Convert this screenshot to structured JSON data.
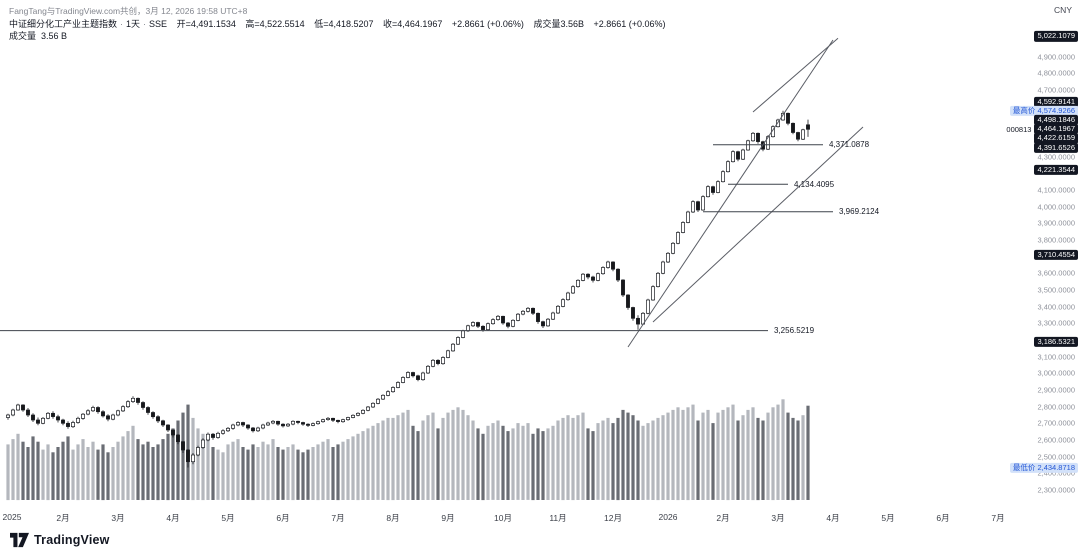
{
  "header": {
    "attribution": "FangTang与TradingView.com共创，3月 12, 2026 19:58 UTC+8",
    "legend": {
      "title": "中证细分化工产业主题指数",
      "separator": "·",
      "interval": "1天",
      "exchange": "SSE",
      "open": "开=4,491.1534",
      "high": "高=4,522.5514",
      "low": "低=4,418.5207",
      "close": "收=4,464.1967",
      "change": "+2.8661 (+0.06%)",
      "volume": "成交量3.56B",
      "change_after_volume": "+2.8661 (+0.06%)"
    },
    "volume_row": {
      "label": "成交量",
      "value": "3.56 B"
    }
  },
  "price_axis": {
    "currency": "CNY",
    "ticks": [
      {
        "label": "4,900.0000",
        "value": 4900
      },
      {
        "label": "4,800.0000",
        "value": 4800
      },
      {
        "label": "4,700.0000",
        "value": 4700
      },
      {
        "label": "4,300.0000",
        "value": 4300
      },
      {
        "label": "4,100.0000",
        "value": 4100
      },
      {
        "label": "4,000.0000",
        "value": 4000
      },
      {
        "label": "3,900.0000",
        "value": 3900
      },
      {
        "label": "3,800.0000",
        "value": 3800
      },
      {
        "label": "3,600.0000",
        "value": 3600
      },
      {
        "label": "3,500.0000",
        "value": 3500
      },
      {
        "label": "3,400.0000",
        "value": 3400
      },
      {
        "label": "3,300.0000",
        "value": 3300
      },
      {
        "label": "3,100.0000",
        "value": 3100
      },
      {
        "label": "3,000.0000",
        "value": 3000
      },
      {
        "label": "2,900.0000",
        "value": 2900
      },
      {
        "label": "2,800.0000",
        "value": 2800
      },
      {
        "label": "2,700.0000",
        "value": 2700
      },
      {
        "label": "2,600.0000",
        "value": 2600
      },
      {
        "label": "2,500.0000",
        "value": 2500
      },
      {
        "label": "2,400.0000",
        "value": 2400
      },
      {
        "label": "2,300.0000",
        "value": 2300
      }
    ],
    "badges": [
      {
        "label": "5,022.1079",
        "price": 5022.1079,
        "type": "dark"
      },
      {
        "label": "4,592.9141",
        "price": 4592.9141,
        "type": "dark"
      },
      {
        "prefix": "最高价",
        "label": "4,574.9266",
        "price": 4574.9266,
        "type": "blue"
      },
      {
        "label": "4,498.1846",
        "price": 4498.1846,
        "type": "dark"
      },
      {
        "prefix": "000813",
        "label": "4,464.1967",
        "price": 4464.1967,
        "type": "dark"
      },
      {
        "label": "4,422.6159",
        "price": 4422.6159,
        "type": "dark"
      },
      {
        "label": "4,391.6526",
        "price": 4391.6526,
        "type": "dark"
      },
      {
        "label": "4,221.3544",
        "price": 4221.3544,
        "type": "dark"
      },
      {
        "label": "3,710.4554",
        "price": 3710.4554,
        "type": "dark"
      },
      {
        "label": "3,186.5321",
        "price": 3186.5321,
        "type": "dark"
      },
      {
        "prefix": "最低价",
        "label": "2,434.8718",
        "price": 2434.8718,
        "type": "blue"
      }
    ]
  },
  "time_axis": {
    "labels": [
      {
        "text": "2025",
        "i": 0
      },
      {
        "text": "2月",
        "i": 11
      },
      {
        "text": "3月",
        "i": 22
      },
      {
        "text": "4月",
        "i": 33
      },
      {
        "text": "5月",
        "i": 44
      },
      {
        "text": "6月",
        "i": 55
      },
      {
        "text": "7月",
        "i": 66
      },
      {
        "text": "8月",
        "i": 77
      },
      {
        "text": "9月",
        "i": 88
      },
      {
        "text": "10月",
        "i": 99
      },
      {
        "text": "11月",
        "i": 110
      },
      {
        "text": "12月",
        "i": 121
      },
      {
        "text": "2026",
        "i": 132
      },
      {
        "text": "2月",
        "i": 143
      },
      {
        "text": "3月",
        "i": 154
      },
      {
        "text": "4月",
        "i": 165
      },
      {
        "text": "5月",
        "i": 176
      },
      {
        "text": "6月",
        "i": 187
      },
      {
        "text": "7月",
        "i": 198
      }
    ]
  },
  "chart_data": {
    "type": "candlestick",
    "symbol": "中证细分化工产业主题指数",
    "symbol_code": "000813",
    "interval": "1天",
    "exchange": "SSE",
    "currency": "CNY",
    "title": "中证细分化工产业主题指数 · 1天 · SSE",
    "ohlc_fields": [
      "open",
      "high",
      "low",
      "close",
      "volume_B"
    ],
    "price_range": {
      "min": 2240,
      "max": 5060
    },
    "volume_max_B": 4.0,
    "stats": {
      "open": 4491.1534,
      "high": 4522.5514,
      "low": 4418.5207,
      "last_close": 4464.1967,
      "change": "+2.8661",
      "change_pct": "+0.06%",
      "volume": "3.56 B",
      "highest": 4574.9266,
      "lowest": 2434.8718
    },
    "candles": [
      [
        2735,
        2758,
        2722,
        2750,
        2.1
      ],
      [
        2750,
        2788,
        2742,
        2780,
        2.3
      ],
      [
        2780,
        2818,
        2775,
        2810,
        2.5
      ],
      [
        2810,
        2815,
        2770,
        2780,
        2.2
      ],
      [
        2780,
        2792,
        2738,
        2750,
        2.0
      ],
      [
        2750,
        2760,
        2708,
        2720,
        2.4
      ],
      [
        2720,
        2735,
        2688,
        2700,
        2.2
      ],
      [
        2700,
        2738,
        2695,
        2730,
        1.9
      ],
      [
        2730,
        2768,
        2725,
        2760,
        2.1
      ],
      [
        2760,
        2772,
        2728,
        2740,
        1.8
      ],
      [
        2740,
        2752,
        2705,
        2720,
        2.0
      ],
      [
        2720,
        2728,
        2688,
        2700,
        2.2
      ],
      [
        2700,
        2712,
        2668,
        2680,
        2.4
      ],
      [
        2680,
        2715,
        2672,
        2705,
        1.9
      ],
      [
        2705,
        2740,
        2698,
        2730,
        2.1
      ],
      [
        2730,
        2762,
        2722,
        2755,
        2.3
      ],
      [
        2755,
        2785,
        2748,
        2775,
        2.0
      ],
      [
        2775,
        2805,
        2768,
        2795,
        2.2
      ],
      [
        2795,
        2802,
        2758,
        2770,
        1.9
      ],
      [
        2770,
        2778,
        2735,
        2745,
        2.1
      ],
      [
        2745,
        2755,
        2712,
        2725,
        1.8
      ],
      [
        2725,
        2758,
        2718,
        2750,
        2.0
      ],
      [
        2750,
        2782,
        2742,
        2775,
        2.2
      ],
      [
        2775,
        2808,
        2768,
        2800,
        2.4
      ],
      [
        2800,
        2838,
        2792,
        2830,
        2.6
      ],
      [
        2830,
        2862,
        2822,
        2850,
        2.8
      ],
      [
        2850,
        2855,
        2812,
        2825,
        2.3
      ],
      [
        2825,
        2832,
        2782,
        2795,
        2.1
      ],
      [
        2795,
        2802,
        2752,
        2765,
        2.2
      ],
      [
        2765,
        2772,
        2728,
        2740,
        2.0
      ],
      [
        2740,
        2748,
        2702,
        2715,
        2.1
      ],
      [
        2715,
        2722,
        2678,
        2690,
        2.3
      ],
      [
        2690,
        2695,
        2648,
        2660,
        2.5
      ],
      [
        2660,
        2662,
        2615,
        2630,
        2.7
      ],
      [
        2630,
        2635,
        2575,
        2590,
        3.0
      ],
      [
        2590,
        2592,
        2522,
        2540,
        3.3
      ],
      [
        2540,
        2545,
        2434.8718,
        2470,
        3.6
      ],
      [
        2470,
        2522,
        2455,
        2510,
        3.1
      ],
      [
        2510,
        2565,
        2502,
        2555,
        2.7
      ],
      [
        2555,
        2610,
        2548,
        2600,
        2.5
      ],
      [
        2600,
        2645,
        2592,
        2635,
        2.3
      ],
      [
        2635,
        2642,
        2602,
        2615,
        2.0
      ],
      [
        2615,
        2650,
        2608,
        2640,
        1.9
      ],
      [
        2640,
        2665,
        2632,
        2655,
        1.8
      ],
      [
        2655,
        2678,
        2648,
        2670,
        2.1
      ],
      [
        2670,
        2698,
        2662,
        2690,
        2.2
      ],
      [
        2690,
        2712,
        2682,
        2705,
        2.3
      ],
      [
        2705,
        2710,
        2678,
        2690,
        2.0
      ],
      [
        2690,
        2695,
        2662,
        2672,
        1.9
      ],
      [
        2672,
        2678,
        2645,
        2655,
        2.1
      ],
      [
        2655,
        2680,
        2648,
        2672,
        2.0
      ],
      [
        2672,
        2698,
        2665,
        2690,
        2.2
      ],
      [
        2690,
        2710,
        2684,
        2702,
        2.1
      ],
      [
        2702,
        2720,
        2695,
        2712,
        2.3
      ],
      [
        2712,
        2715,
        2685,
        2695,
        2.0
      ],
      [
        2695,
        2700,
        2675,
        2685,
        1.9
      ],
      [
        2685,
        2702,
        2678,
        2695,
        2.0
      ],
      [
        2695,
        2718,
        2688,
        2712,
        2.1
      ],
      [
        2712,
        2715,
        2695,
        2705,
        1.9
      ],
      [
        2705,
        2710,
        2685,
        2695,
        1.8
      ],
      [
        2695,
        2700,
        2678,
        2688,
        1.9
      ],
      [
        2688,
        2705,
        2682,
        2698,
        2.0
      ],
      [
        2698,
        2716,
        2692,
        2710,
        2.1
      ],
      [
        2710,
        2728,
        2704,
        2722,
        2.2
      ],
      [
        2722,
        2738,
        2716,
        2730,
        2.3
      ],
      [
        2730,
        2734,
        2708,
        2718,
        2.0
      ],
      [
        2718,
        2722,
        2700,
        2710,
        2.1
      ],
      [
        2710,
        2728,
        2704,
        2722,
        2.2
      ],
      [
        2722,
        2740,
        2716,
        2735,
        2.3
      ],
      [
        2735,
        2754,
        2730,
        2748,
        2.4
      ],
      [
        2748,
        2766,
        2742,
        2760,
        2.5
      ],
      [
        2760,
        2784,
        2755,
        2778,
        2.6
      ],
      [
        2778,
        2804,
        2772,
        2798,
        2.7
      ],
      [
        2798,
        2826,
        2792,
        2820,
        2.8
      ],
      [
        2820,
        2852,
        2815,
        2845,
        2.9
      ],
      [
        2845,
        2875,
        2840,
        2868,
        3.0
      ],
      [
        2868,
        2898,
        2862,
        2890,
        3.1
      ],
      [
        2890,
        2922,
        2884,
        2915,
        3.1
      ],
      [
        2915,
        2952,
        2910,
        2945,
        3.2
      ],
      [
        2945,
        2982,
        2940,
        2975,
        3.3
      ],
      [
        2975,
        3012,
        2970,
        3005,
        3.4
      ],
      [
        3005,
        3010,
        2975,
        2985,
        2.8
      ],
      [
        2985,
        2992,
        2952,
        2962,
        2.6
      ],
      [
        2962,
        3010,
        2956,
        3002,
        3.0
      ],
      [
        3002,
        3050,
        2996,
        3042,
        3.2
      ],
      [
        3042,
        3086,
        3036,
        3078,
        3.3
      ],
      [
        3078,
        3084,
        3048,
        3058,
        2.7
      ],
      [
        3058,
        3102,
        3052,
        3095,
        3.1
      ],
      [
        3095,
        3142,
        3090,
        3135,
        3.3
      ],
      [
        3135,
        3182,
        3130,
        3175,
        3.4
      ],
      [
        3175,
        3222,
        3170,
        3215,
        3.5
      ],
      [
        3215,
        3262,
        3210,
        3255,
        3.4
      ],
      [
        3255,
        3292,
        3248,
        3285,
        3.2
      ],
      [
        3285,
        3312,
        3278,
        3305,
        3.0
      ],
      [
        3305,
        3310,
        3272,
        3282,
        2.7
      ],
      [
        3282,
        3288,
        3250,
        3262,
        2.5
      ],
      [
        3262,
        3305,
        3256,
        3298,
        2.8
      ],
      [
        3298,
        3330,
        3292,
        3322,
        2.9
      ],
      [
        3322,
        3350,
        3315,
        3342,
        3.0
      ],
      [
        3342,
        3345,
        3292,
        3302,
        2.8
      ],
      [
        3302,
        3308,
        3270,
        3282,
        2.6
      ],
      [
        3282,
        3325,
        3276,
        3318,
        2.7
      ],
      [
        3318,
        3362,
        3312,
        3355,
        2.9
      ],
      [
        3355,
        3380,
        3348,
        3372,
        2.8
      ],
      [
        3372,
        3398,
        3365,
        3390,
        2.9
      ],
      [
        3390,
        3395,
        3350,
        3360,
        2.5
      ],
      [
        3360,
        3365,
        3298,
        3310,
        2.7
      ],
      [
        3310,
        3315,
        3272,
        3285,
        2.6
      ],
      [
        3285,
        3332,
        3280,
        3325,
        2.7
      ],
      [
        3325,
        3370,
        3320,
        3362,
        2.8
      ],
      [
        3362,
        3410,
        3356,
        3402,
        3.0
      ],
      [
        3402,
        3450,
        3396,
        3442,
        3.1
      ],
      [
        3442,
        3490,
        3436,
        3482,
        3.2
      ],
      [
        3482,
        3528,
        3476,
        3520,
        3.1
      ],
      [
        3520,
        3565,
        3514,
        3558,
        3.2
      ],
      [
        3558,
        3602,
        3552,
        3595,
        3.3
      ],
      [
        3595,
        3600,
        3565,
        3578,
        2.7
      ],
      [
        3578,
        3585,
        3545,
        3558,
        2.6
      ],
      [
        3558,
        3605,
        3552,
        3598,
        2.9
      ],
      [
        3598,
        3642,
        3592,
        3635,
        3.0
      ],
      [
        3635,
        3675,
        3628,
        3668,
        3.1
      ],
      [
        3668,
        3672,
        3612,
        3625,
        2.9
      ],
      [
        3625,
        3630,
        3548,
        3560,
        3.1
      ],
      [
        3560,
        3565,
        3458,
        3470,
        3.4
      ],
      [
        3470,
        3475,
        3382,
        3395,
        3.3
      ],
      [
        3395,
        3400,
        3315,
        3330,
        3.2
      ],
      [
        3330,
        3348,
        3262,
        3295,
        3.0
      ],
      [
        3295,
        3368,
        3290,
        3360,
        2.8
      ],
      [
        3360,
        3448,
        3355,
        3440,
        2.9
      ],
      [
        3440,
        3528,
        3435,
        3520,
        3.0
      ],
      [
        3520,
        3608,
        3515,
        3600,
        3.1
      ],
      [
        3600,
        3675,
        3595,
        3668,
        3.2
      ],
      [
        3668,
        3728,
        3662,
        3720,
        3.3
      ],
      [
        3720,
        3788,
        3715,
        3780,
        3.4
      ],
      [
        3780,
        3852,
        3775,
        3845,
        3.5
      ],
      [
        3845,
        3912,
        3840,
        3905,
        3.4
      ],
      [
        3905,
        3975,
        3900,
        3968,
        3.5
      ],
      [
        3968,
        4038,
        3962,
        4030,
        3.6
      ],
      [
        4030,
        4035,
        3968,
        3980,
        3.0
      ],
      [
        3980,
        4068,
        3975,
        4060,
        3.3
      ],
      [
        4060,
        4128,
        4055,
        4120,
        3.4
      ],
      [
        4120,
        4125,
        4072,
        4085,
        2.9
      ],
      [
        4085,
        4158,
        4080,
        4150,
        3.3
      ],
      [
        4150,
        4218,
        4145,
        4210,
        3.4
      ],
      [
        4210,
        4278,
        4205,
        4270,
        3.5
      ],
      [
        4270,
        4338,
        4265,
        4330,
        3.6
      ],
      [
        4330,
        4335,
        4272,
        4285,
        3.0
      ],
      [
        4285,
        4348,
        4280,
        4340,
        3.2
      ],
      [
        4340,
        4402,
        4335,
        4395,
        3.4
      ],
      [
        4395,
        4448,
        4390,
        4440,
        3.5
      ],
      [
        4440,
        4445,
        4378,
        4390,
        3.1
      ],
      [
        4390,
        4395,
        4332,
        4345,
        3.0
      ],
      [
        4345,
        4428,
        4340,
        4420,
        3.3
      ],
      [
        4420,
        4488,
        4415,
        4480,
        3.5
      ],
      [
        4480,
        4528,
        4475,
        4520,
        3.6
      ],
      [
        4520,
        4574.9266,
        4515,
        4560,
        3.8
      ],
      [
        4560,
        4565,
        4488,
        4500,
        3.3
      ],
      [
        4500,
        4505,
        4435,
        4445,
        3.1
      ],
      [
        4445,
        4450,
        4392,
        4405,
        3.0
      ],
      [
        4405,
        4468,
        4400,
        4461.3306,
        3.2
      ],
      [
        4491.1534,
        4522.5514,
        4418.5207,
        4464.1967,
        3.56
      ]
    ],
    "levels": [
      {
        "price": 4371.0878,
        "label": "4,371.0878",
        "i1": 141,
        "i2": 163
      },
      {
        "price": 4134.4095,
        "label": "4,134.4095",
        "i1": 144,
        "i2": 156
      },
      {
        "price": 3969.2124,
        "label": "3,969.2124",
        "i1": 139,
        "i2": 165
      },
      {
        "price": 3256.5219,
        "label": "3,256.5219",
        "i1": -2,
        "i2": 152
      }
    ],
    "trendlines": [
      {
        "i1": 124,
        "p1": 3158,
        "i2": 165,
        "p2": 5000
      },
      {
        "i1": 129,
        "p1": 3308,
        "i2": 171,
        "p2": 4478
      },
      {
        "i1": 149,
        "p1": 4568,
        "i2": 166,
        "p2": 5010
      }
    ]
  },
  "footer": {
    "brand": "TradingView"
  }
}
